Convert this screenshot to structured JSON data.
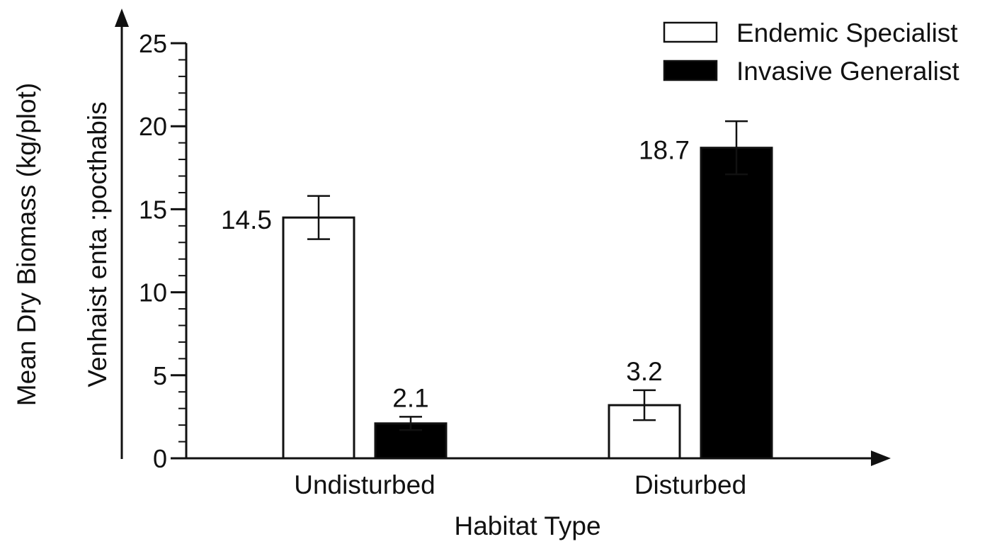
{
  "chart_data": {
    "type": "bar",
    "title": "",
    "xlabel": "Habitat Type",
    "ylabel": "Mean Dry Biomass (kg/plot)",
    "ylabel_secondary": "Venhaist enta :pocthabis",
    "categories": [
      "Undisturbed",
      "Disturbed"
    ],
    "ylim": [
      0,
      25
    ],
    "yticks": [
      0,
      5,
      10,
      15,
      20,
      25
    ],
    "ytick_labels": [
      "0",
      "5",
      "10",
      "15",
      "20",
      "25"
    ],
    "minor_tick_step": 1,
    "grid": false,
    "legend_position": "top-right",
    "series": [
      {
        "name": "Endemic Specialist",
        "fill": "#ffffff",
        "values": [
          14.5,
          3.2
        ],
        "errors": [
          1.3,
          0.9
        ],
        "labels": [
          "14.5",
          "3.2"
        ]
      },
      {
        "name": "Invasive Generalist",
        "fill": "#000000",
        "values": [
          2.1,
          18.7
        ],
        "errors": [
          0.4,
          1.6
        ],
        "labels": [
          "2.1",
          "18.7"
        ]
      }
    ]
  }
}
